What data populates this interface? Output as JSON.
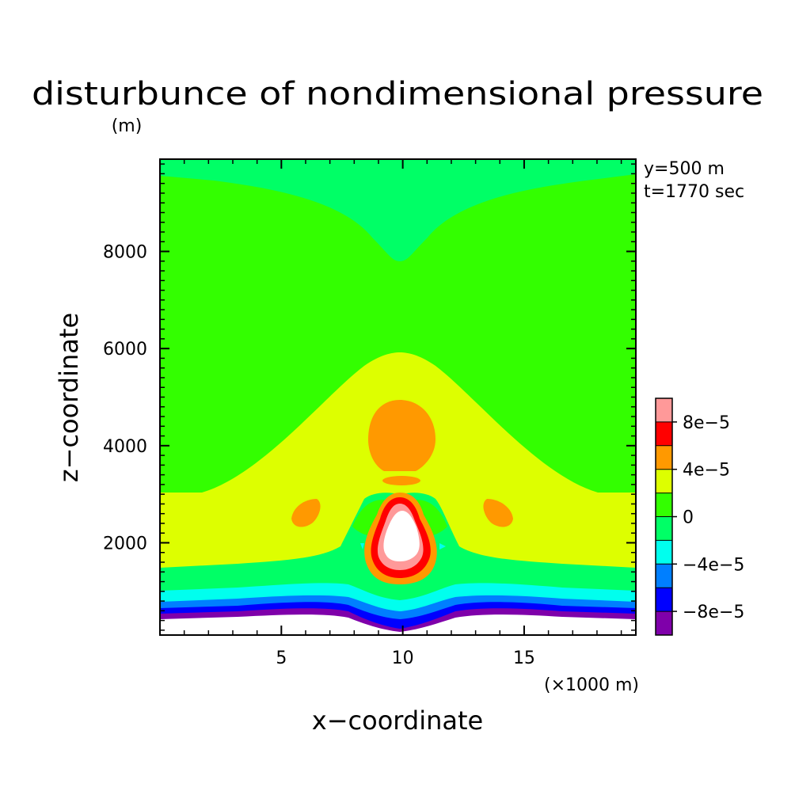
{
  "chart_data": {
    "type": "heatmap",
    "title": "disturbunce of nondimensional pressure",
    "unit_label": "(m)",
    "xlabel": "x−coordinate",
    "ylabel": "z−coordinate",
    "x_unit": "(×1000 m)",
    "info": [
      "y=500 m",
      "t=1770 sec"
    ],
    "xlim": [
      0,
      19.6
    ],
    "ylim": [
      100,
      9900
    ],
    "xticks": [
      5,
      10,
      15
    ],
    "yticks": [
      2000,
      4000,
      6000,
      8000
    ],
    "colorbar": {
      "levels": [
        -0.0001,
        -8e-05,
        -6e-05,
        -4e-05,
        -2e-05,
        0,
        2e-05,
        4e-05,
        6e-05,
        8e-05,
        0.0001
      ],
      "colors": [
        "#7f00aa",
        "#0000ff",
        "#007fff",
        "#00ffee",
        "#00ff66",
        "#33ff00",
        "#ddff00",
        "#ff9900",
        "#ff0000",
        "#ff9999"
      ],
      "tick_labels": [
        {
          "level": 8e-05,
          "text": "8e−5"
        },
        {
          "level": 4e-05,
          "text": "4e−5"
        },
        {
          "level": 0,
          "text": "0"
        },
        {
          "level": -4e-05,
          "text": "−4e−5"
        },
        {
          "level": -8e-05,
          "text": "−8e−5"
        }
      ]
    },
    "below_range_color": "#ffffff",
    "above_range_color": "#ffffff",
    "regions": [
      {
        "band": "surface",
        "z": [
          0,
          320
        ],
        "value": "below range (white)"
      },
      {
        "band": "violet",
        "z": [
          320,
          420
        ],
        "range": [
          -0.0001,
          -8e-05
        ]
      },
      {
        "band": "blue",
        "z": [
          420,
          560
        ],
        "range": [
          -8e-05,
          -6e-05
        ]
      },
      {
        "band": "azure",
        "z": [
          560,
          760
        ],
        "range": [
          -6e-05,
          -4e-05
        ]
      },
      {
        "band": "cyan",
        "z": [
          760,
          1050
        ],
        "range": [
          -4e-05,
          -2e-05
        ]
      },
      {
        "band": "spring-green",
        "z": [
          1050,
          1450
        ],
        "range": [
          -2e-05,
          0
        ]
      },
      {
        "band": "yellow-green",
        "z": [
          1450,
          3000
        ],
        "range": [
          2e-05,
          4e-05
        ],
        "note": "rises to about z=5900 over x=10"
      },
      {
        "band": "green",
        "z": [
          3000,
          9600
        ],
        "range": [
          0,
          2e-05
        ],
        "note": "dips to about z=7800 over x=10"
      },
      {
        "band": "top",
        "z": [
          9600,
          9900
        ],
        "range": [
          -2e-05,
          0
        ]
      },
      {
        "feature": "upper orange cell",
        "center": [
          10.1,
          4200
        ],
        "range": [
          4e-05,
          6e-05
        ]
      },
      {
        "feature": "side orange lobes",
        "centers": [
          [
            6.3,
            2500
          ],
          [
            13.9,
            2500
          ]
        ],
        "range": [
          4e-05,
          6e-05
        ]
      },
      {
        "feature": "central maximum",
        "center": [
          10.2,
          2100
        ],
        "range": "above 1e-4 (white core, red and pink rings)"
      }
    ]
  }
}
